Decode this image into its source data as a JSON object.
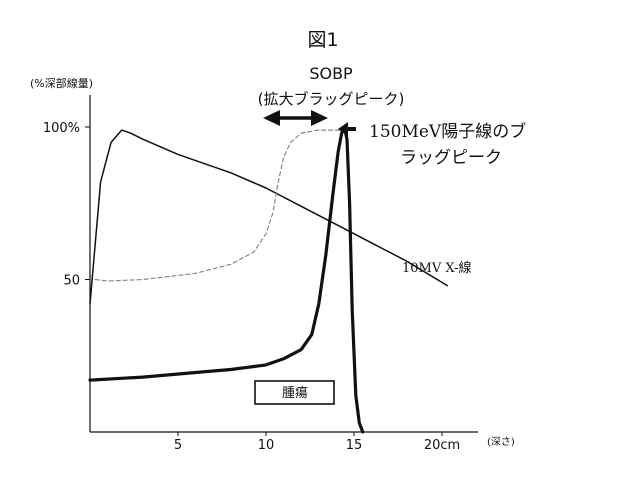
{
  "chart_data": {
    "type": "line",
    "title": "図1",
    "ylabel": "(%深部線量)",
    "xlabel": "(深さ)",
    "xlim": [
      0,
      20
    ],
    "ylim": [
      0,
      100
    ],
    "x_ticks": [
      {
        "value": 5,
        "label": "5"
      },
      {
        "value": 10,
        "label": "10"
      },
      {
        "value": 15,
        "label": "15"
      },
      {
        "value": 20,
        "label": "20cm"
      }
    ],
    "y_ticks": [
      {
        "value": 50,
        "label": "50"
      },
      {
        "value": 100,
        "label": "100%"
      }
    ],
    "series": [
      {
        "name": "10MV X-線",
        "style": "solid-thin",
        "color": "#111111",
        "x": [
          0,
          0.6,
          1.2,
          1.8,
          2.3,
          3,
          5,
          8,
          10,
          12,
          14,
          16,
          18,
          20.3
        ],
        "y": [
          42,
          82,
          95,
          99,
          98,
          96,
          91,
          85,
          80,
          74,
          68,
          62,
          56,
          48
        ]
      },
      {
        "name": "150MeV陽子線のブラッグピーク",
        "style": "solid-thick",
        "color": "#111111",
        "x": [
          0,
          3,
          6,
          8,
          10,
          11,
          12,
          12.6,
          13.0,
          13.4,
          13.8,
          14.1,
          14.3,
          14.45,
          14.6,
          14.75,
          14.9,
          15.1,
          15.3,
          15.5
        ],
        "y": [
          17,
          18,
          19.5,
          20.5,
          22,
          24,
          27,
          32,
          42,
          58,
          78,
          92,
          98,
          100,
          96,
          75,
          40,
          12,
          3,
          0
        ]
      },
      {
        "name": "SOBP",
        "style": "dashed",
        "color": "#888888",
        "x": [
          0.3,
          1,
          3,
          6,
          8,
          9.3,
          10,
          10.4,
          10.7,
          11.0,
          11.4,
          12,
          13,
          14.2,
          14.45
        ],
        "y": [
          50,
          49.5,
          50,
          52,
          55,
          59,
          65,
          72,
          82,
          90,
          95,
          98,
          99,
          99,
          99.5
        ]
      }
    ],
    "annotations": {
      "sobp_label": "SOBP",
      "sobp_sublabel": "(拡大ブラッグピーク)",
      "proton_label_line1": "150MeV陽子線のブ",
      "proton_label_line2": "ラッグピーク",
      "xray_label": "10MV X-線",
      "tumor_label": "腫瘍"
    },
    "grid": false,
    "legend": "none"
  }
}
